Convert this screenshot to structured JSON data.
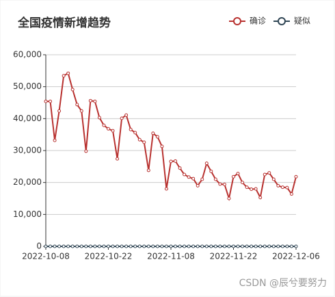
{
  "chart_data": {
    "type": "line",
    "title": "全国疫情新增趋势",
    "watermark": "CSDN @辰兮要努力",
    "legend": "top-right",
    "grid": true,
    "categories": [
      "2022-10-08",
      null,
      null,
      null,
      null,
      null,
      null,
      null,
      null,
      null,
      null,
      null,
      null,
      null,
      "2022-10-22",
      null,
      null,
      null,
      null,
      null,
      null,
      null,
      null,
      null,
      null,
      null,
      null,
      null,
      "2022-11-08",
      null,
      null,
      null,
      null,
      null,
      null,
      null,
      null,
      null,
      null,
      null,
      null,
      null,
      "2022-11-22",
      null,
      null,
      null,
      null,
      null,
      null,
      null,
      null,
      null,
      null,
      null,
      null,
      null,
      "2022-12-06"
    ],
    "ylim": [
      0,
      60000
    ],
    "yticks": [
      0,
      {
        "value": 10000,
        "label": "10,000"
      },
      {
        "value": 20000,
        "label": "20,000"
      },
      {
        "value": 30000,
        "label": "30,000"
      },
      {
        "value": 40000,
        "label": "40,000"
      },
      {
        "value": 50000,
        "label": "50,000"
      },
      {
        "value": 60000,
        "label": "60,000"
      }
    ],
    "series": [
      {
        "name": "确诊",
        "color": "#b8312f",
        "values": [
          45400,
          45400,
          33200,
          42400,
          53400,
          54200,
          49100,
          44400,
          42400,
          29800,
          45600,
          45400,
          40300,
          37900,
          36800,
          36200,
          27400,
          40100,
          41100,
          36600,
          35600,
          33400,
          32600,
          23800,
          35400,
          34300,
          31300,
          18000,
          26600,
          26700,
          24500,
          22500,
          21700,
          21200,
          19000,
          21000,
          26000,
          23500,
          21000,
          19500,
          19400,
          15000,
          21800,
          22800,
          20000,
          18500,
          17900,
          18000,
          15300,
          22500,
          23000,
          21000,
          19000,
          18500,
          18400,
          16400,
          21800
        ]
      },
      {
        "name": "疑似",
        "color": "#2f4554",
        "values": [
          0,
          0,
          0,
          0,
          0,
          0,
          0,
          0,
          0,
          0,
          0,
          0,
          0,
          0,
          0,
          0,
          0,
          0,
          0,
          0,
          0,
          0,
          0,
          0,
          0,
          0,
          0,
          0,
          0,
          0,
          0,
          0,
          0,
          0,
          0,
          0,
          0,
          0,
          0,
          0,
          0,
          0,
          0,
          0,
          0,
          0,
          0,
          0,
          0,
          0,
          0,
          0,
          0,
          0,
          0,
          0,
          0
        ]
      }
    ]
  }
}
